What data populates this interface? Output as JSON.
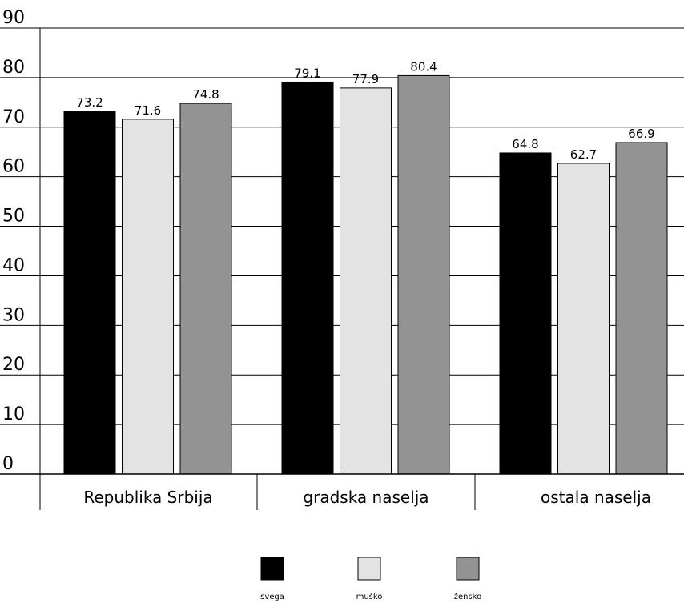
{
  "chart_data": {
    "type": "bar",
    "categories": [
      "Republika Srbija",
      "gradska naselja",
      "ostala naselja"
    ],
    "series": [
      {
        "name": "svega",
        "color": "#000000",
        "values": [
          73.2,
          79.1,
          64.8
        ]
      },
      {
        "name": "muško",
        "color": "#e3e3e3",
        "values": [
          71.6,
          77.9,
          62.7
        ]
      },
      {
        "name": "žensko",
        "color": "#939393",
        "values": [
          74.8,
          80.4,
          66.9
        ]
      }
    ],
    "yticks": [
      "0",
      "10",
      "20",
      "30",
      "40",
      "50",
      "60",
      "70",
      "80",
      "90"
    ],
    "ylim": [
      0,
      90
    ],
    "grid": true,
    "legend": "bottom-center"
  }
}
